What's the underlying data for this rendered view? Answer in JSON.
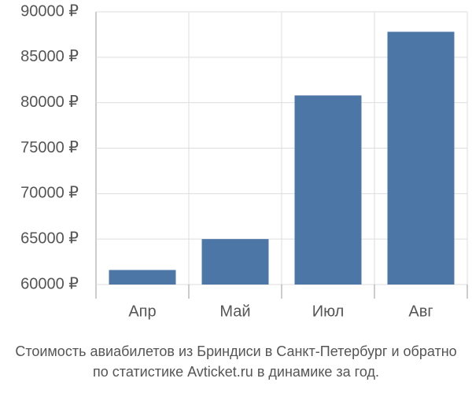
{
  "chart_data": {
    "type": "bar",
    "title": "Стоимость авиабилетов из Бриндиси в Санкт-Петербург и обратно",
    "subtitle": "по статистике Avticket.ru в динамике за год.",
    "categories": [
      "Апр",
      "Май",
      "Июл",
      "Авг"
    ],
    "values": [
      61600,
      65000,
      80800,
      87800
    ],
    "color": "#4b76a6",
    "ylim": [
      60000,
      90000
    ],
    "yticks": [
      {
        "value": 60000,
        "label": "60000 ₽"
      },
      {
        "value": 65000,
        "label": "65000 ₽"
      },
      {
        "value": 70000,
        "label": "70000 ₽"
      },
      {
        "value": 75000,
        "label": "75000 ₽"
      },
      {
        "value": 80000,
        "label": "80000 ₽"
      },
      {
        "value": 85000,
        "label": "85000 ₽"
      },
      {
        "value": 90000,
        "label": "90000 ₽"
      }
    ],
    "grid": true
  }
}
